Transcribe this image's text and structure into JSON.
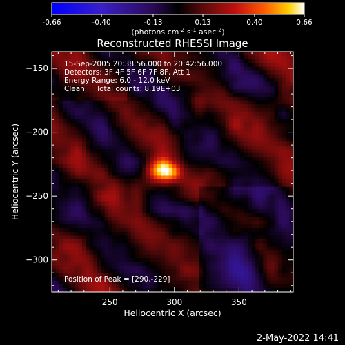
{
  "colorbar": {
    "ticks": [
      "-0.66",
      "-0.40",
      "-0.13",
      "0.13",
      "0.40",
      "0.66"
    ],
    "tick_values": [
      -0.66,
      -0.4,
      -0.13,
      0.13,
      0.4,
      0.66
    ],
    "range": [
      -0.66,
      0.66
    ],
    "colormap": [
      {
        "v": -0.66,
        "c": "#0000ff"
      },
      {
        "v": -0.4,
        "c": "#3a1fc8"
      },
      {
        "v": -0.13,
        "c": "#2a0a55"
      },
      {
        "v": 0.0,
        "c": "#000000"
      },
      {
        "v": 0.13,
        "c": "#5a0a0a"
      },
      {
        "v": 0.3,
        "c": "#c01010"
      },
      {
        "v": 0.45,
        "c": "#ff5a00"
      },
      {
        "v": 0.58,
        "c": "#ffd000"
      },
      {
        "v": 0.66,
        "c": "#ffffff"
      }
    ],
    "units_parts": [
      "(photons cm",
      "-2",
      " s",
      "-1",
      " asec",
      "-2",
      ")"
    ]
  },
  "chart_data": {
    "type": "heatmap",
    "title": "Reconstructed RHESSI Image",
    "xlabel": "Heliocentric X (arcsec)",
    "ylabel": "Heliocentric Y (arcsec)",
    "xlim": [
      205,
      392
    ],
    "ylim": [
      -325,
      -137
    ],
    "xticks": [
      250,
      300,
      350
    ],
    "yticks": [
      -150,
      -200,
      -250,
      -300
    ],
    "xtick_labels": [
      "250",
      "300",
      "350"
    ],
    "ytick_labels": [
      "−150",
      "−200",
      "−250",
      "−300"
    ],
    "peak_position": [
      290,
      -229
    ],
    "peak_value": 0.66,
    "grid": false
  },
  "annotations": [
    "15-Sep-2005 20:38:56.000 to 20:42:56.000",
    "Detectors: 3F 4F 5F 6F 7F 8F, Att 1",
    "Energy Range: 6.0 - 12.0 keV",
    "Clean     Total counts: 8.19E+03"
  ],
  "peak_label": "Position of Peak = [290,-229]",
  "timestamp": "2-May-2022 14:41",
  "colors": {
    "background": "#000000",
    "text": "#ffffff",
    "axis": "#ffffff"
  }
}
